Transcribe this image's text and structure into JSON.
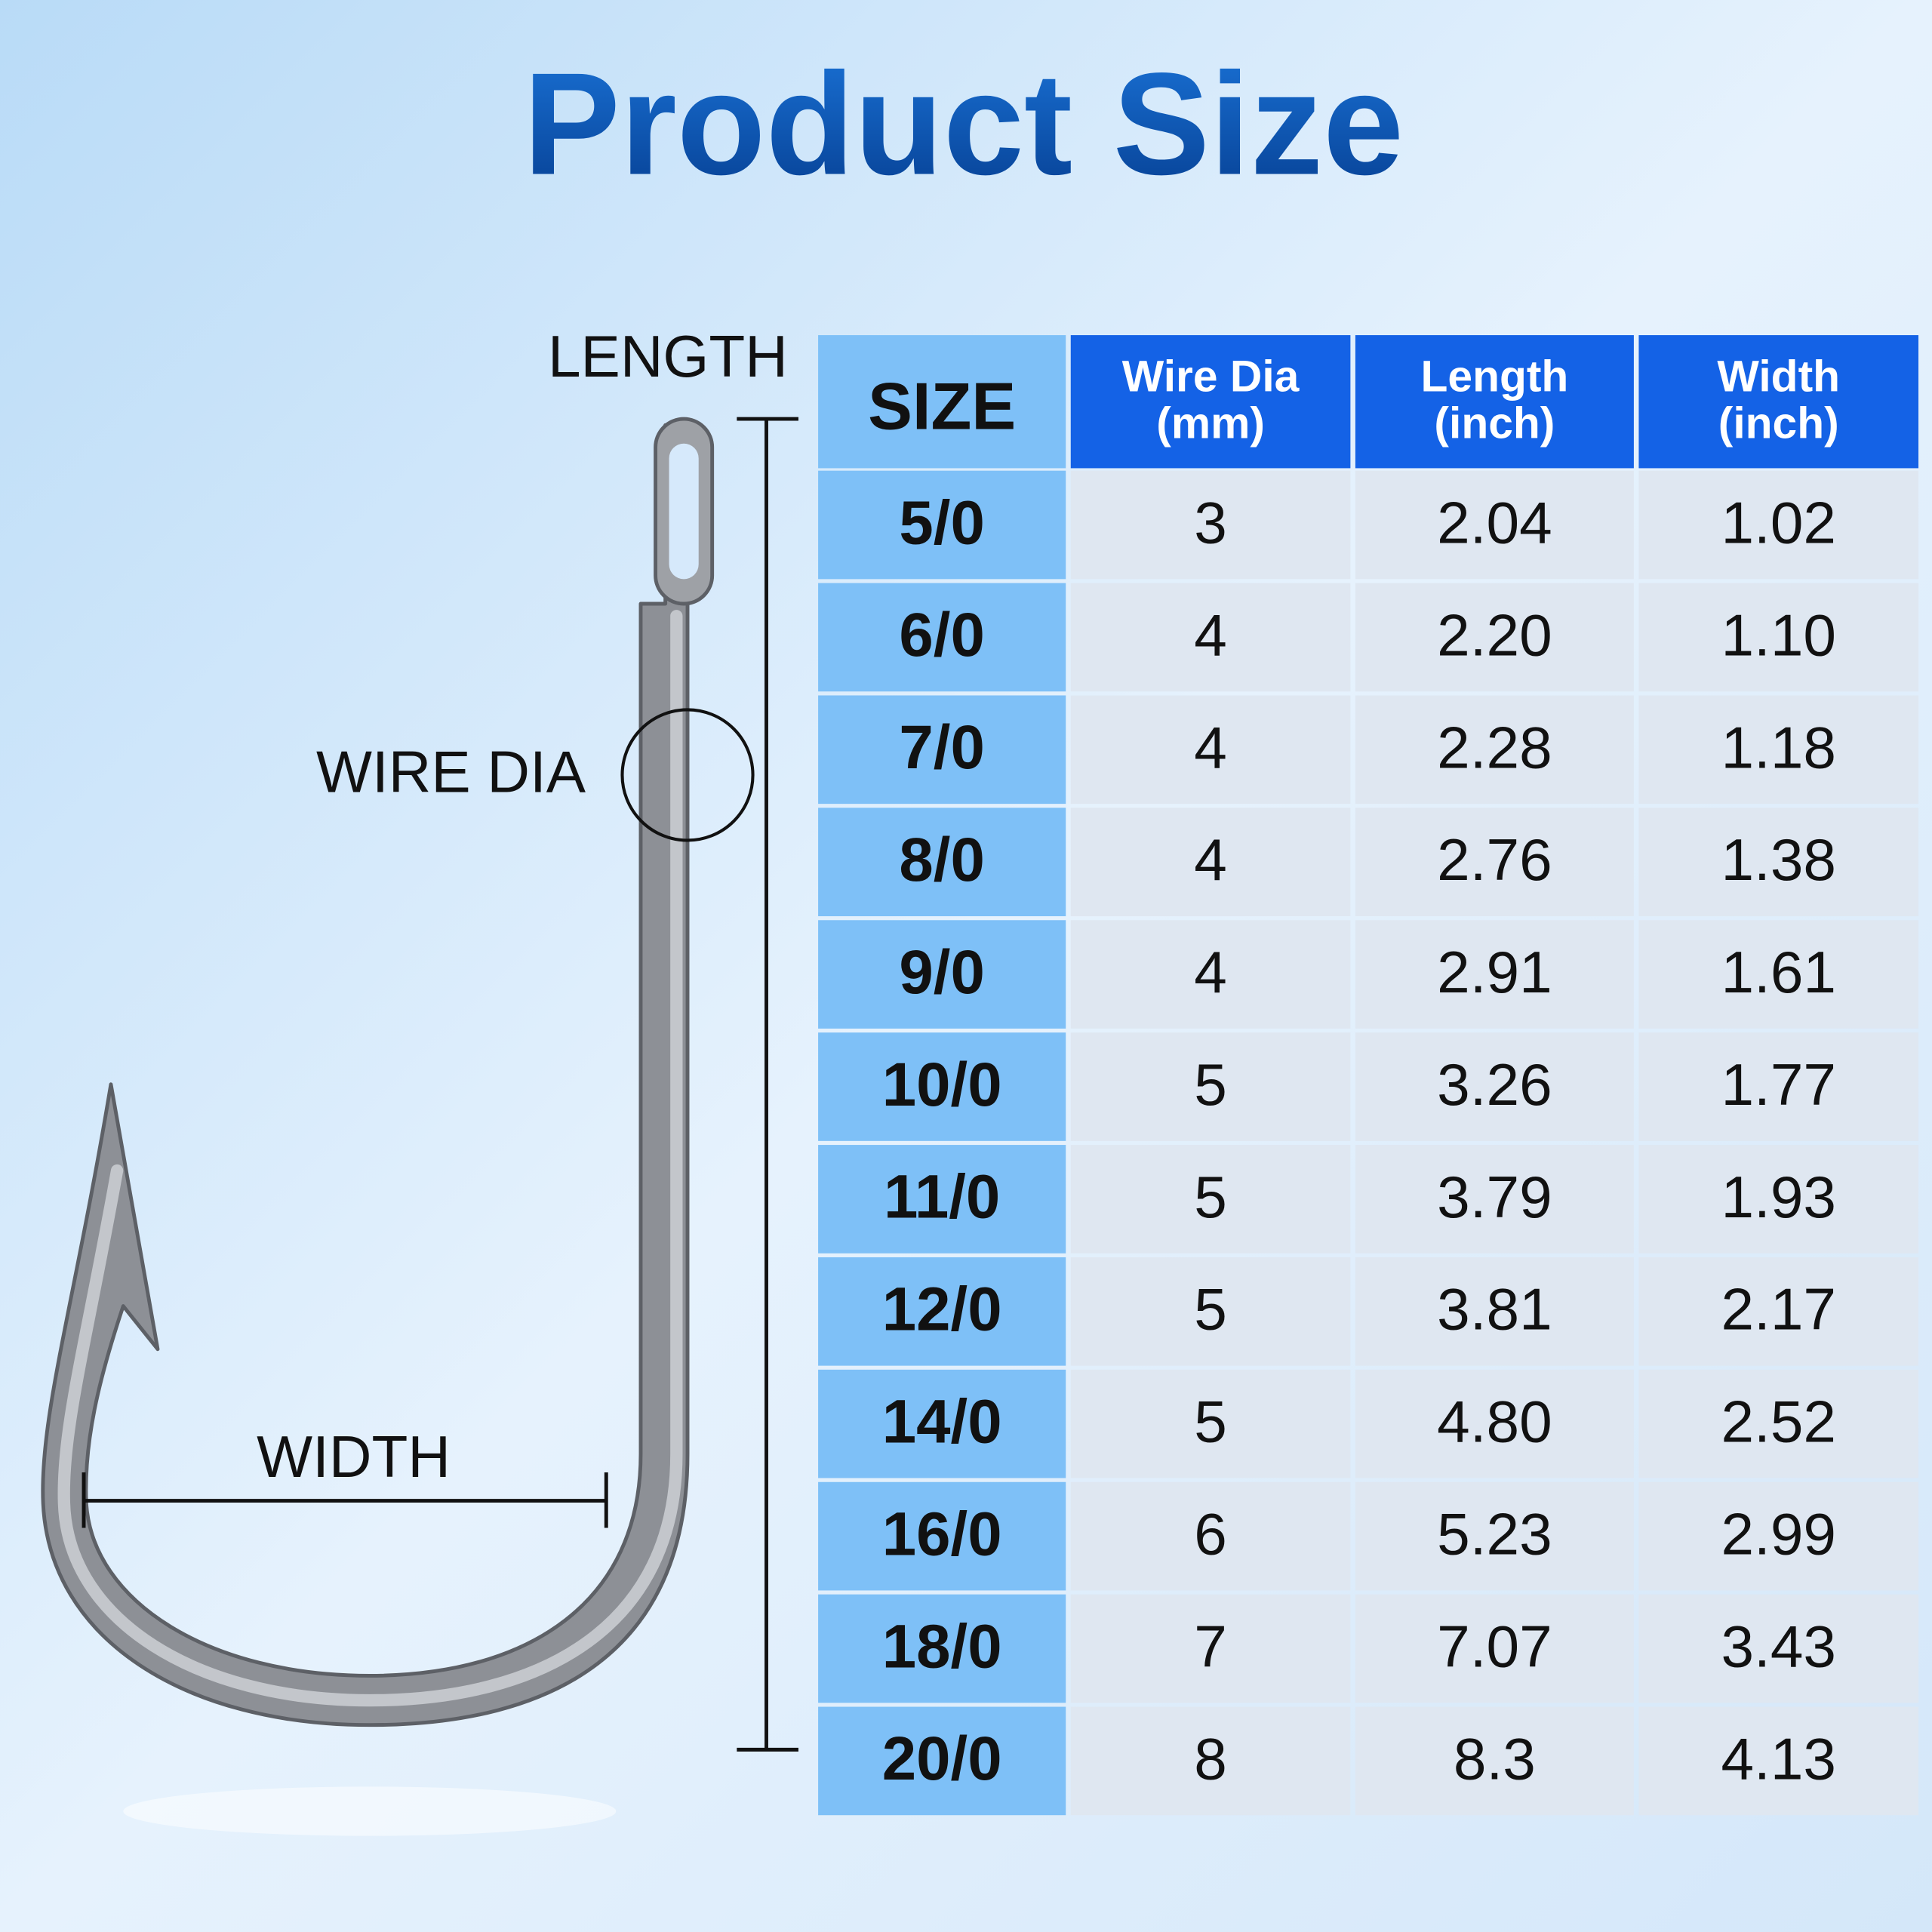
{
  "title": "Product Size",
  "labels": {
    "length": "LENGTH",
    "wire_dia": "WIRE DIA",
    "width": "WIDTH"
  },
  "table": {
    "header": [
      "SIZE",
      [
        "Wire Dia",
        "(mm)"
      ],
      [
        "Length",
        "(inch)"
      ],
      [
        "Width",
        "(inch)"
      ]
    ],
    "rows": [
      [
        "5/0",
        "3",
        "2.04",
        "1.02"
      ],
      [
        "6/0",
        "4",
        "2.20",
        "1.10"
      ],
      [
        "7/0",
        "4",
        "2.28",
        "1.18"
      ],
      [
        "8/0",
        "4",
        "2.76",
        "1.38"
      ],
      [
        "9/0",
        "4",
        "2.91",
        "1.61"
      ],
      [
        "10/0",
        "5",
        "3.26",
        "1.77"
      ],
      [
        "11/0",
        "5",
        "3.79",
        "1.93"
      ],
      [
        "12/0",
        "5",
        "3.81",
        "2.17"
      ],
      [
        "14/0",
        "5",
        "4.80",
        "2.52"
      ],
      [
        "16/0",
        "6",
        "5.23",
        "2.99"
      ],
      [
        "18/0",
        "7",
        "7.07",
        "3.43"
      ],
      [
        "20/0",
        "8",
        "8.3",
        "4.13"
      ]
    ]
  }
}
